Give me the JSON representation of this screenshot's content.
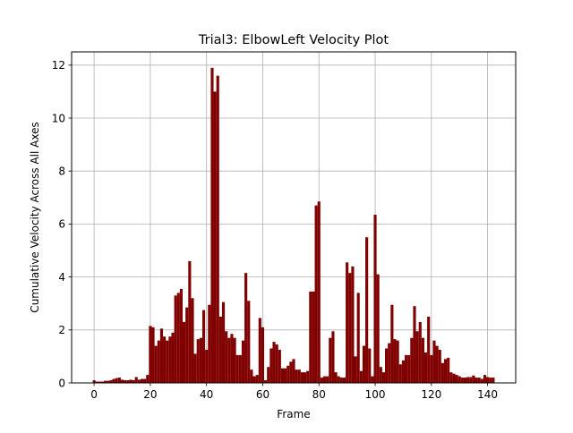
{
  "chart_data": {
    "type": "bar",
    "title": "Trial3: ElbowLeft Velocity Plot",
    "xlabel": "Frame",
    "ylabel": "Cumulative Velocity Across All Axes",
    "xlim": [
      -8,
      150
    ],
    "ylim": [
      0,
      12.5
    ],
    "x_ticks": [
      0,
      20,
      40,
      60,
      80,
      100,
      120,
      140
    ],
    "y_ticks": [
      0,
      2,
      4,
      6,
      8,
      10,
      12
    ],
    "grid": true,
    "bar_color": "#800000",
    "series": [
      {
        "values": [
          0.1,
          0.05,
          0.05,
          0.05,
          0.08,
          0.08,
          0.1,
          0.15,
          0.18,
          0.2,
          0.12,
          0.1,
          0.1,
          0.12,
          0.1,
          0.22,
          0.12,
          0.15,
          0.15,
          0.3,
          2.15,
          2.1,
          1.4,
          1.6,
          2.05,
          1.75,
          1.6,
          1.75,
          1.9,
          3.3,
          3.4,
          3.55,
          2.3,
          2.85,
          4.6,
          3.2,
          1.1,
          1.65,
          1.7,
          2.75,
          1.25,
          2.95,
          11.9,
          11.0,
          11.6,
          2.5,
          3.05,
          1.95,
          1.7,
          1.85,
          1.7,
          1.05,
          1.05,
          1.6,
          4.15,
          3.1,
          0.5,
          0.25,
          0.3,
          2.45,
          2.1,
          0.1,
          0.6,
          1.3,
          1.55,
          1.45,
          1.25,
          0.55,
          0.55,
          0.65,
          0.8,
          0.9,
          0.5,
          0.5,
          0.4,
          0.4,
          0.45,
          3.45,
          3.45,
          6.7,
          6.85,
          0.2,
          0.25,
          0.25,
          1.7,
          1.95,
          0.4,
          0.25,
          0.2,
          0.2,
          4.55,
          4.15,
          4.4,
          1.0,
          3.4,
          0.45,
          1.4,
          5.5,
          1.3,
          0.25,
          6.35,
          4.1,
          0.6,
          0.4,
          1.3,
          1.5,
          2.95,
          1.65,
          1.6,
          0.7,
          0.85,
          1.05,
          1.05,
          1.7,
          2.9,
          1.95,
          2.3,
          1.7,
          1.15,
          2.5,
          1.05,
          1.6,
          1.4,
          1.25,
          0.75,
          0.9,
          0.95,
          0.4,
          0.35,
          0.3,
          0.25,
          0.2,
          0.2,
          0.22,
          0.22,
          0.28,
          0.2,
          0.2,
          0.15,
          0.3,
          0.22,
          0.2,
          0.2
        ]
      }
    ]
  }
}
